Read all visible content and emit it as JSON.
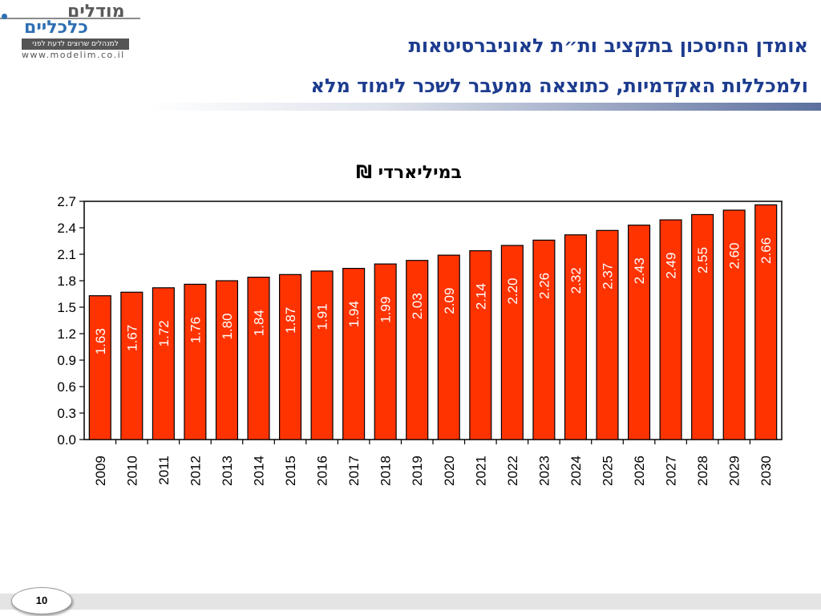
{
  "logo": {
    "word1": "מודלים",
    "word2": "כלכליים",
    "tagline": "למנהלים שרוצים לדעת לפני",
    "url": "www.modelim.co.il"
  },
  "header": {
    "title_line1": "אומדן החיסכון בתקציב ות״ת לאוניברסיטאות",
    "title_line2": "ולמכללות האקדמיות, כתוצאה ממעבר לשכר לימוד מלא"
  },
  "footer": {
    "page_number": "10"
  },
  "colors": {
    "bar": "#ff3300",
    "title": "#1d3c8f"
  },
  "chart_data": {
    "type": "bar",
    "title": "במיליארדי ₪",
    "categories": [
      "2009",
      "2010",
      "2011",
      "2012",
      "2013",
      "2014",
      "2015",
      "2016",
      "2017",
      "2018",
      "2019",
      "2020",
      "2021",
      "2022",
      "2023",
      "2024",
      "2025",
      "2026",
      "2027",
      "2028",
      "2029",
      "2030"
    ],
    "values": [
      1.63,
      1.67,
      1.72,
      1.76,
      1.8,
      1.84,
      1.87,
      1.91,
      1.94,
      1.99,
      2.03,
      2.09,
      2.14,
      2.2,
      2.26,
      2.32,
      2.37,
      2.43,
      2.49,
      2.55,
      2.6,
      2.66
    ],
    "value_labels": [
      "1.63",
      "1.67",
      "1.72",
      "1.76",
      "1.80",
      "1.84",
      "1.87",
      "1.91",
      "1.94",
      "1.99",
      "2.03",
      "2.09",
      "2.14",
      "2.20",
      "2.26",
      "2.32",
      "2.37",
      "2.43",
      "2.49",
      "2.55",
      "2.60",
      "2.66"
    ],
    "ylim": [
      0,
      2.7
    ],
    "yticks": [
      "0.0",
      "0.3",
      "0.6",
      "0.9",
      "1.2",
      "1.5",
      "1.8",
      "2.1",
      "2.4",
      "2.7"
    ],
    "xlabel": "",
    "ylabel": "",
    "grid": false,
    "legend": "none"
  }
}
